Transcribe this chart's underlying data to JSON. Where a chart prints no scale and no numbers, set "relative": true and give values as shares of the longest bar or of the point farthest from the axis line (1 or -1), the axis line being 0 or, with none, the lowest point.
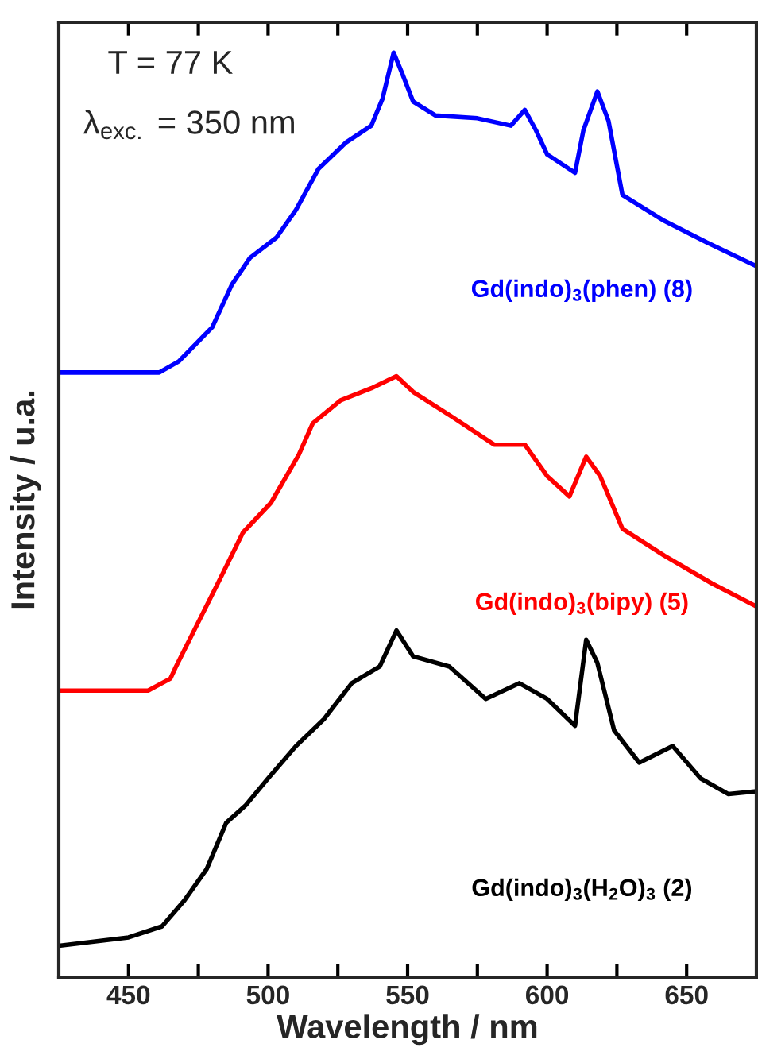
{
  "chart_data": {
    "type": "line",
    "relative": true,
    "xlabel": "Wavelength / nm",
    "ylabel": "Intensity / u.a.",
    "xlim": [
      425,
      675
    ],
    "xticks": [
      450,
      {
        "value": 475,
        "label": null
      },
      500,
      {
        "value": 525,
        "label": null
      },
      550,
      {
        "value": 575,
        "label": null
      },
      600,
      {
        "value": 625,
        "label": null
      },
      650
    ],
    "annotations": [
      "T = 77 K",
      "λ$_{exc.}$ = 350 nm"
    ],
    "grid": false,
    "legend": false,
    "line_style": "solid",
    "marker": "none",
    "series": [
      {
        "name": "Gd(indo)$_{3}$(phen) (8)",
        "color": "#0000ff",
        "x": [
          425,
          461,
          468,
          480,
          487,
          493.5,
          503,
          510,
          518,
          528,
          537,
          541,
          545,
          548,
          552,
          560,
          575,
          587,
          592,
          596,
          600,
          610,
          613,
          618,
          622,
          627,
          642,
          657,
          675
        ],
        "values": [
          0.654,
          0.654,
          0.666,
          0.703,
          0.749,
          0.778,
          0.8,
          0.83,
          0.874,
          0.903,
          0.921,
          0.95,
          1.0,
          0.978,
          0.947,
          0.932,
          0.929,
          0.921,
          0.938,
          0.916,
          0.89,
          0.87,
          0.916,
          0.958,
          0.926,
          0.846,
          0.818,
          0.795,
          0.769
        ]
      },
      {
        "name": "Gd(indo)$_{3}$(bipy) (5)",
        "color": "#ff0000",
        "x": [
          425,
          457,
          465,
          467,
          482,
          491,
          501,
          511,
          516,
          526,
          537,
          546,
          552,
          566,
          581,
          592,
          600,
          608,
          614,
          619,
          627,
          642,
          659,
          675
        ],
        "values": [
          0.31,
          0.31,
          0.323,
          0.336,
          0.426,
          0.481,
          0.513,
          0.565,
          0.599,
          0.624,
          0.637,
          0.65,
          0.633,
          0.606,
          0.576,
          0.576,
          0.542,
          0.52,
          0.563,
          0.542,
          0.485,
          0.456,
          0.426,
          0.401
        ]
      },
      {
        "name": "Gd(indo)$_{3}$(H$_{2}$O)$_{3}$ (2)",
        "color": "#000000",
        "x": [
          425,
          450,
          462,
          470,
          478,
          485,
          492,
          500,
          510,
          520,
          530,
          540,
          546,
          552,
          565,
          578,
          590,
          600,
          610,
          614,
          618,
          624,
          633,
          645,
          655,
          665,
          675
        ],
        "values": [
          0.034,
          0.043,
          0.055,
          0.083,
          0.117,
          0.167,
          0.186,
          0.215,
          0.25,
          0.279,
          0.318,
          0.336,
          0.375,
          0.347,
          0.336,
          0.301,
          0.318,
          0.301,
          0.272,
          0.365,
          0.34,
          0.267,
          0.232,
          0.25,
          0.215,
          0.198,
          0.201
        ]
      }
    ]
  }
}
